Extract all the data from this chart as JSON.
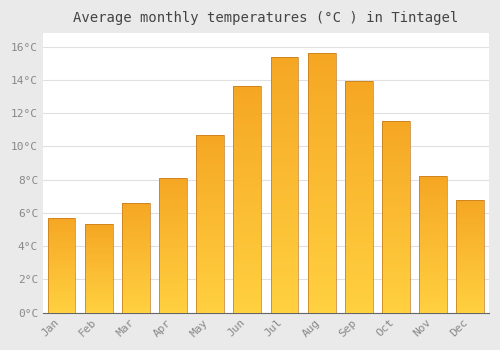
{
  "title": "Average monthly temperatures (°C ) in Tintagel",
  "months": [
    "Jan",
    "Feb",
    "Mar",
    "Apr",
    "May",
    "Jun",
    "Jul",
    "Aug",
    "Sep",
    "Oct",
    "Nov",
    "Dec"
  ],
  "values": [
    5.7,
    5.3,
    6.6,
    8.1,
    10.7,
    13.6,
    15.4,
    15.6,
    13.9,
    11.5,
    8.2,
    6.8
  ],
  "bar_color_top": "#F5A623",
  "bar_color_bottom": "#FFD040",
  "bar_edge_color": "#C07820",
  "background_color": "#EAEAEA",
  "plot_bg_color": "#FFFFFF",
  "grid_color": "#E0E0E0",
  "yticks": [
    0,
    2,
    4,
    6,
    8,
    10,
    12,
    14,
    16
  ],
  "ylim": [
    0,
    16.8
  ],
  "title_fontsize": 10,
  "tick_fontsize": 8,
  "tick_color": "#888888",
  "title_color": "#444444"
}
